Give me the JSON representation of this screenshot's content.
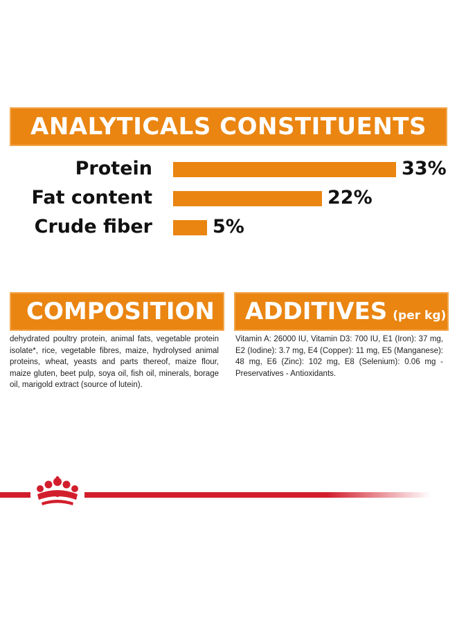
{
  "analytics": {
    "title": "ANALYTICALS CONSTITUENTS",
    "rows": [
      {
        "label": "Protein",
        "value": "33%",
        "percent": 33
      },
      {
        "label": "Fat content",
        "value": "22%",
        "percent": 22
      },
      {
        "label": "Crude fiber",
        "value": "5%",
        "percent": 5
      }
    ]
  },
  "composition": {
    "title": "COMPOSITION",
    "text": "dehydrated poultry protein, animal fats, vegetable protein isolate*, rice, vegetable fibres, maize, hydrolysed animal proteins, wheat, yeasts and parts thereof, maize flour, maize gluten, beet pulp, soya oil, fish oil, minerals, borage oil, marigold extract (source of lutein)."
  },
  "additives": {
    "title": "ADDITIVES",
    "title_suffix": "(per kg)",
    "text": "Vitamin A: 26000 IU, Vitamin D3: 700 IU, E1 (Iron): 37 mg, E2 (Iodine): 3.7 mg, E4 (Copper): 11 mg, E5 (Manganese): 48 mg, E6 (Zinc): 102 mg, E8 (Selenium): 0.06 mg - Preservatives - Antioxidants."
  },
  "colors": {
    "accent_orange": "#ea8511",
    "brand_red": "#d21e2c"
  },
  "icons": {
    "logo": "royal-crown-icon"
  }
}
